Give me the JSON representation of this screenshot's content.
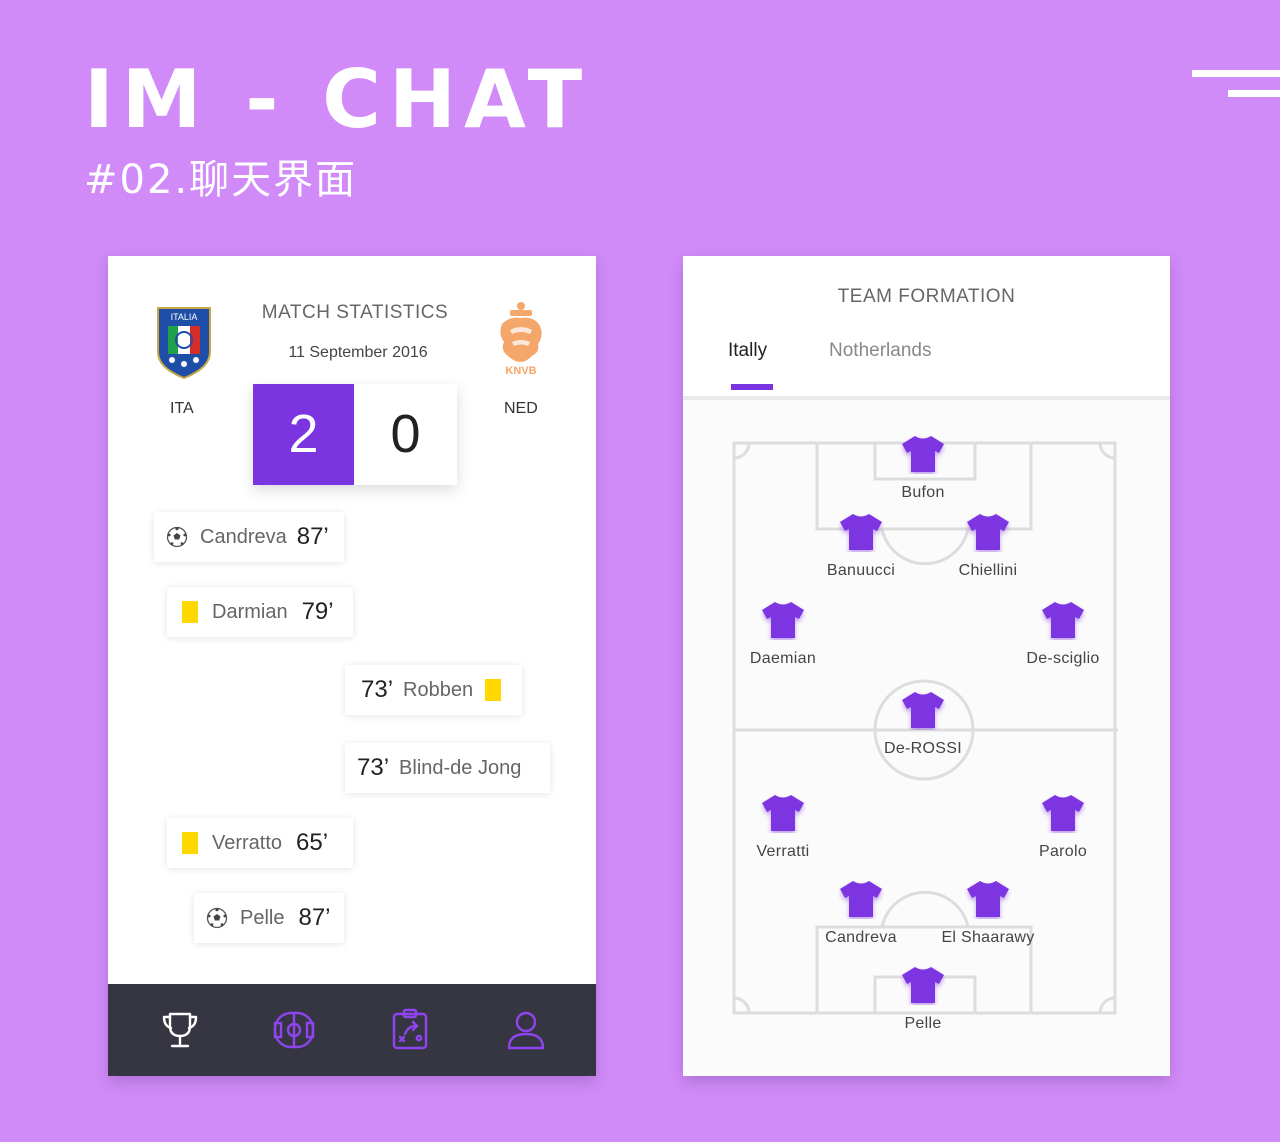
{
  "header": {
    "title": "IM - CHAT",
    "subtitle": "#02.聊天界面"
  },
  "colors": {
    "background": "#D18BF8",
    "accent": "#7B35E0",
    "tabbar": "#363643",
    "yellow_card": "#FFD800"
  },
  "stats": {
    "title": "MATCH STATISTICS",
    "date": "11 September 2016",
    "home": {
      "code": "ITA",
      "score": "2",
      "crest_text": "ITALIA"
    },
    "away": {
      "code": "NED",
      "score": "0",
      "crest_text": "KNVB"
    },
    "events": [
      {
        "player": "Candreva",
        "minute": "87’",
        "icon": "soccer-ball-icon",
        "side": "home"
      },
      {
        "player": "Darmian",
        "minute": "79’",
        "icon": "yellow-card-icon",
        "side": "home"
      },
      {
        "player": "Robben",
        "minute": "73’",
        "icon": "yellow-card-icon",
        "side": "away"
      },
      {
        "player": "Blind-de Jong",
        "minute": "73’",
        "icon": "none",
        "side": "away"
      },
      {
        "player": "Verratto",
        "minute": "65’",
        "icon": "yellow-card-icon",
        "side": "home"
      },
      {
        "player": "Pelle",
        "minute": "87’",
        "icon": "soccer-ball-icon",
        "side": "home"
      }
    ],
    "tabbar": [
      "trophy-icon",
      "pitch-icon",
      "tactics-board-icon",
      "user-profile-icon"
    ]
  },
  "formation": {
    "title": "TEAM FORMATION",
    "tabs": [
      {
        "label": "Itally",
        "active": true
      },
      {
        "label": "Notherlands",
        "active": false
      }
    ],
    "players": [
      "Bufon",
      "Banuucci",
      "Chiellini",
      "Daemian",
      "De-sciglio",
      "De-ROSSI",
      "Verratti",
      "Parolo",
      "Candreva",
      "El Shaarawy",
      "Pelle"
    ]
  }
}
